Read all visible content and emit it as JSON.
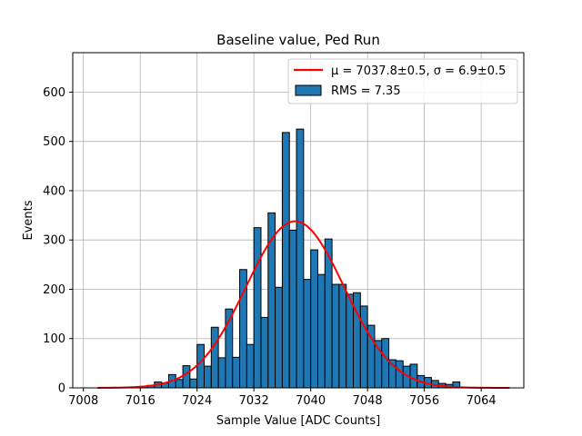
{
  "chart_data": {
    "type": "bar",
    "title": "Baseline value, Ped Run",
    "xlabel": "Sample Value [ADC Counts]",
    "ylabel": "Events",
    "xlim": [
      7006.5,
      7070
    ],
    "ylim": [
      0,
      680
    ],
    "xticks": [
      7008,
      7016,
      7024,
      7032,
      7040,
      7048,
      7056,
      7064
    ],
    "yticks": [
      0,
      100,
      200,
      300,
      400,
      500,
      600
    ],
    "grid": true,
    "legend_position": "upper-right",
    "bar_color": "#1f77b4",
    "fit_color": "#ff0000",
    "bin_width": 1,
    "histogram": {
      "name": "RMS = 7.35",
      "bin_lefts": [
        7016,
        7017,
        7018,
        7019,
        7020,
        7021,
        7022,
        7023,
        7024,
        7025,
        7026,
        7027,
        7028,
        7029,
        7030,
        7031,
        7032,
        7033,
        7034,
        7035,
        7036,
        7037,
        7038,
        7039,
        7040,
        7041,
        7042,
        7043,
        7044,
        7045,
        7046,
        7047,
        7048,
        7049,
        7050,
        7051,
        7052,
        7053,
        7054,
        7055,
        7056,
        7057,
        7058,
        7059,
        7060
      ],
      "counts": [
        3,
        5,
        12,
        10,
        27,
        17,
        45,
        18,
        88,
        44,
        123,
        61,
        160,
        62,
        240,
        88,
        325,
        143,
        355,
        204,
        518,
        320,
        525,
        220,
        280,
        230,
        302,
        210,
        210,
        190,
        193,
        166,
        127,
        96,
        100,
        57,
        55,
        44,
        48,
        25,
        21,
        15,
        9,
        7,
        12
      ]
    },
    "fit": {
      "name": "gaussian-fit",
      "legend_label": "μ = 7037.8±0.5, σ = 6.9±0.5",
      "mu": 7037.8,
      "sigma": 6.9,
      "amplitude": 338,
      "x_range": [
        7010,
        7068
      ]
    }
  }
}
